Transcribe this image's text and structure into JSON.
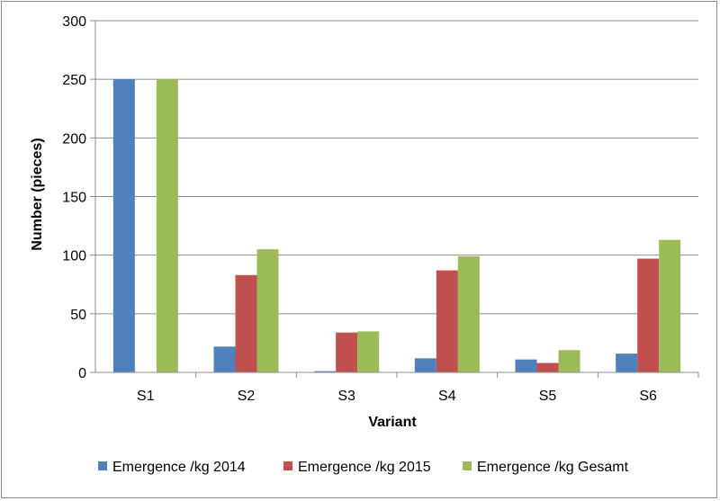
{
  "chart_data": {
    "type": "bar",
    "categories": [
      "S1",
      "S2",
      "S3",
      "S4",
      "S5",
      "S6"
    ],
    "series": [
      {
        "name": "Emergence /kg 2014",
        "color": "#4F81BD",
        "values": [
          250,
          22,
          1,
          12,
          11,
          16
        ]
      },
      {
        "name": "Emergence /kg 2015",
        "color": "#C0504D",
        "values": [
          0,
          83,
          34,
          87,
          8,
          97
        ]
      },
      {
        "name": "Emergence /kg Gesamt",
        "color": "#9BBB59",
        "values": [
          250,
          105,
          35,
          99,
          19,
          113
        ]
      }
    ],
    "title": "",
    "xlabel": "Variant",
    "ylabel": "Number (pieces)",
    "ylim": [
      0,
      300
    ],
    "yticks": [
      0,
      50,
      100,
      150,
      200,
      250,
      300
    ],
    "grid": true,
    "legend_position": "bottom"
  }
}
